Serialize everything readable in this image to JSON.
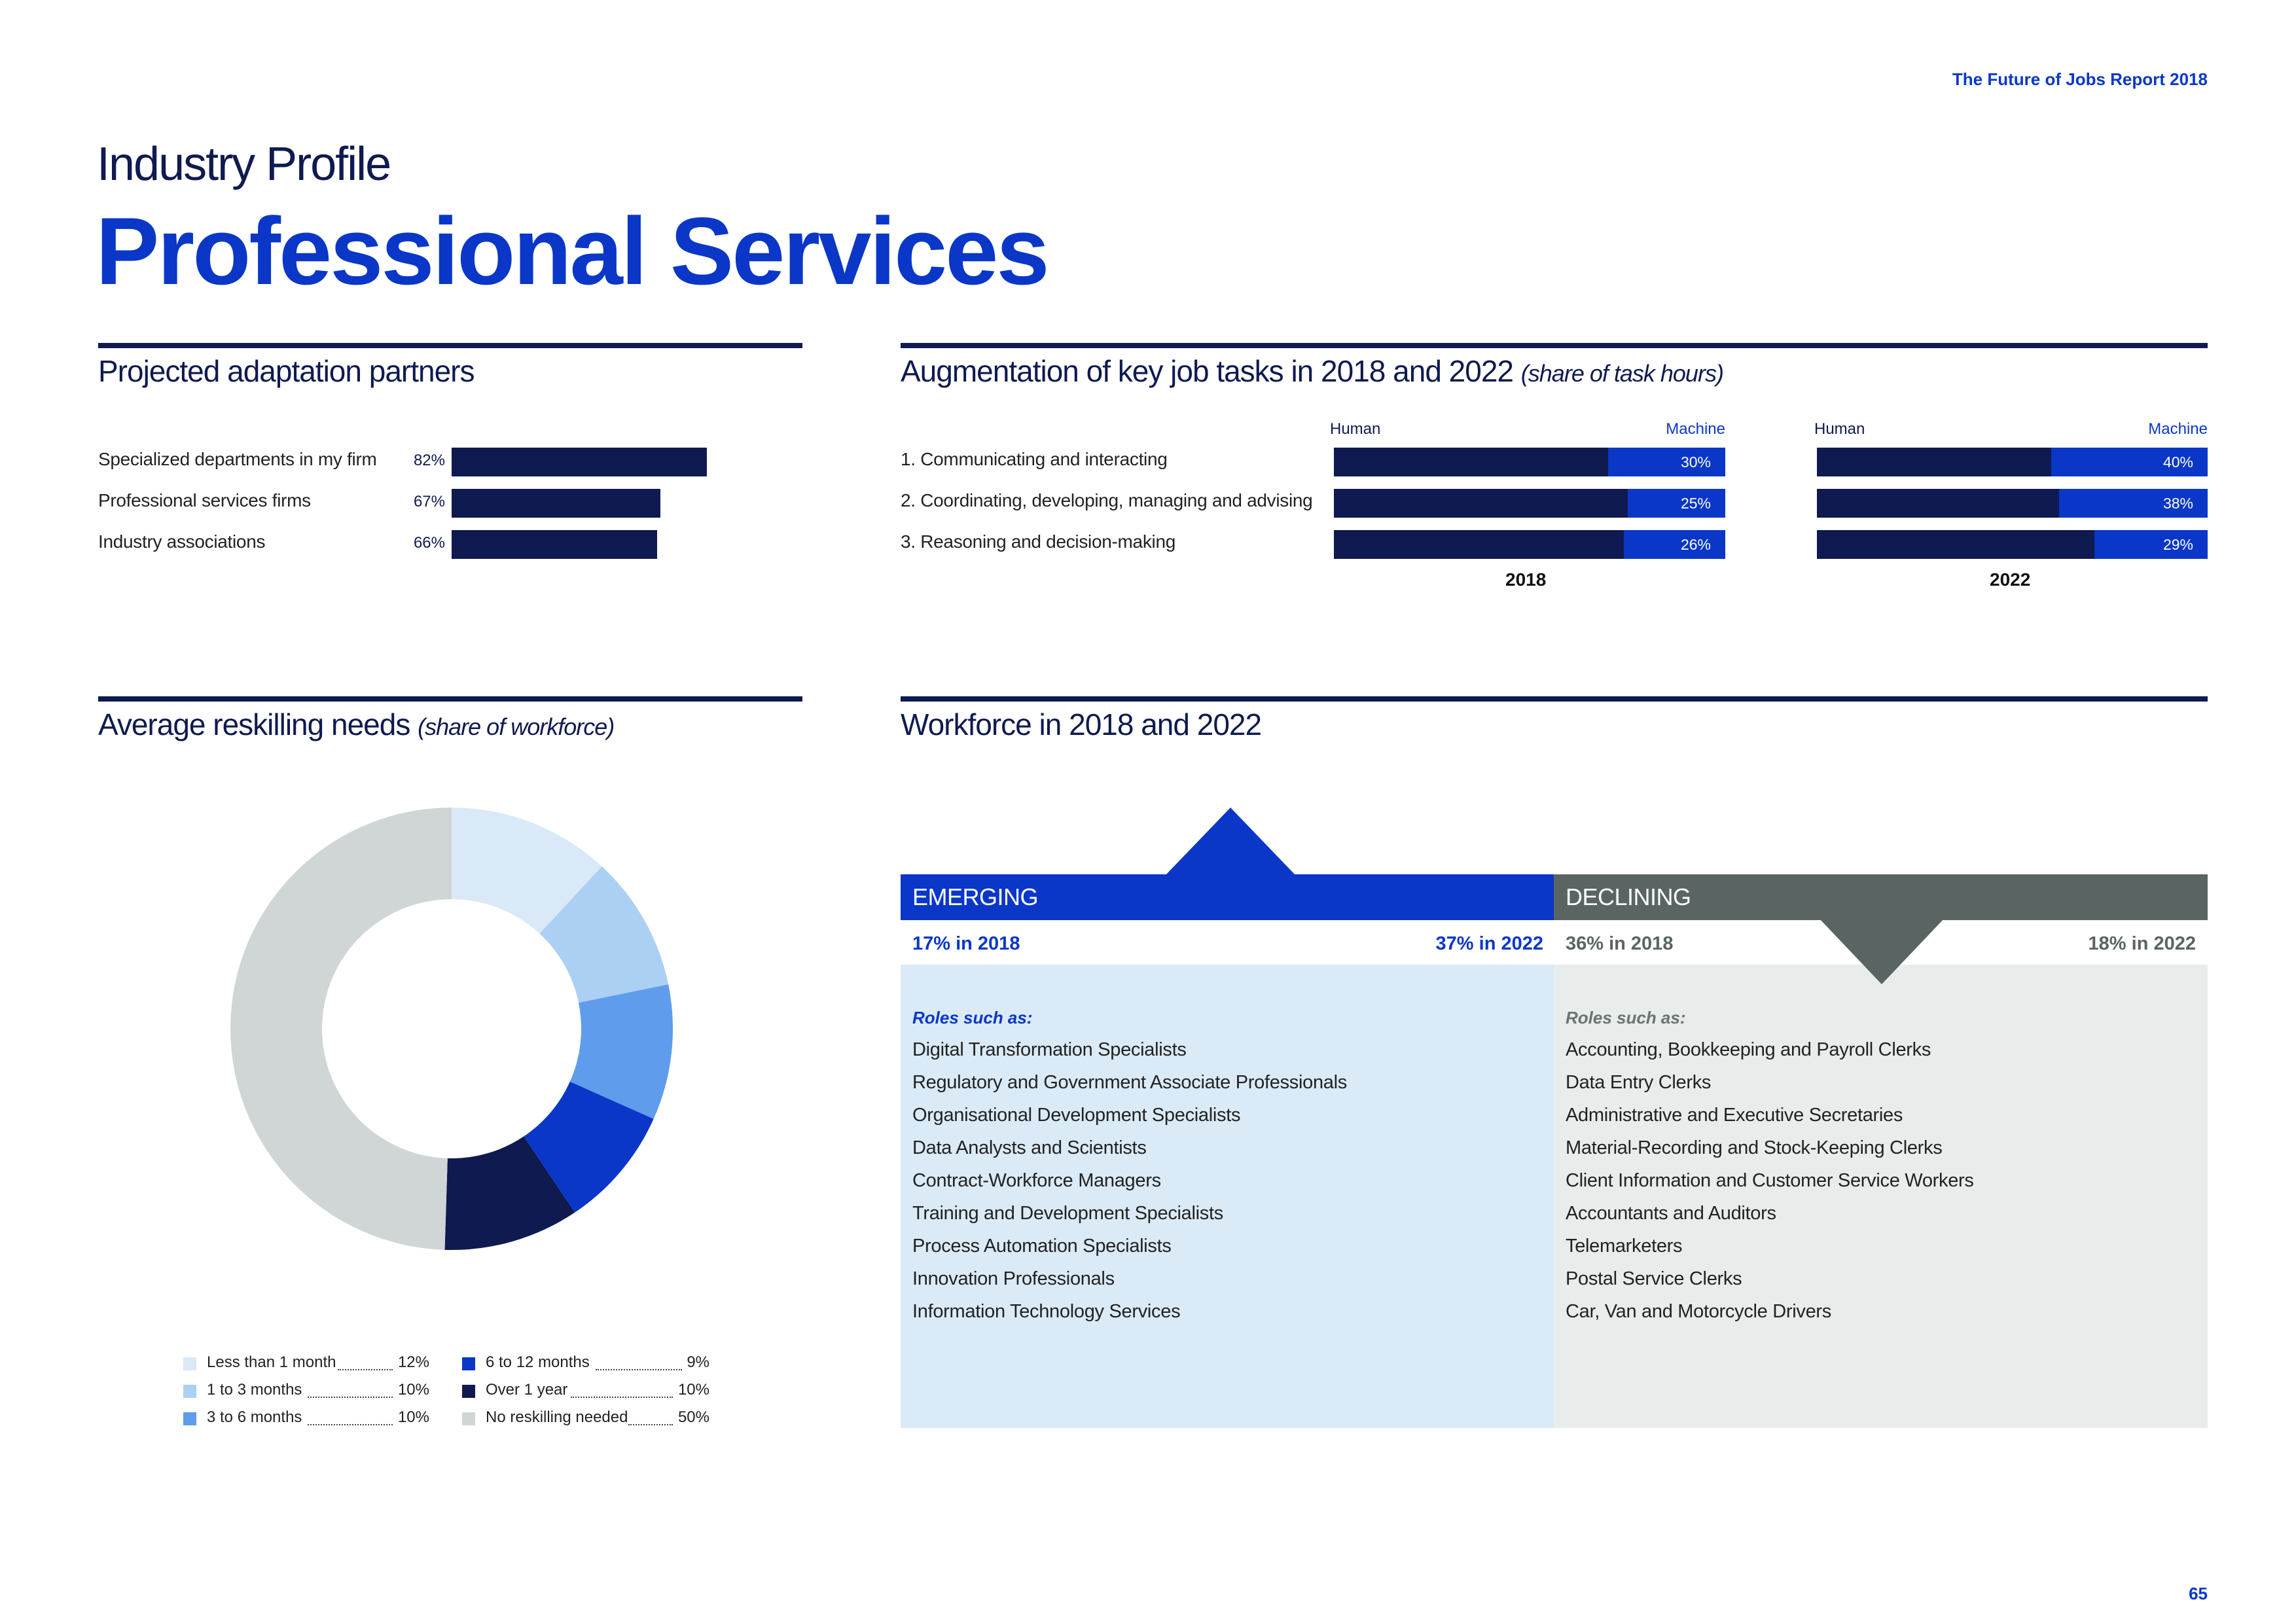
{
  "header": {
    "report_title": "The Future of Jobs Report 2018",
    "page_number": "65"
  },
  "title": {
    "kicker": "Industry Profile",
    "main": "Professional Services"
  },
  "partners": {
    "title": "Projected adaptation partners",
    "items": [
      {
        "label": "Specialized departments in my firm",
        "pct": "82%",
        "value": 82
      },
      {
        "label": "Professional services firms",
        "pct": "67%",
        "value": 67
      },
      {
        "label": "Industry associations",
        "pct": "66%",
        "value": 66
      }
    ]
  },
  "augmentation": {
    "title": "Augmentation of key job tasks in 2018 and 2022",
    "subtitle": "(share of task hours)",
    "human_label": "Human",
    "machine_label": "Machine",
    "year1": "2018",
    "year2": "2022",
    "tasks": [
      {
        "label": "1.  Communicating and interacting",
        "m2018": 30,
        "m2018_label": "30%",
        "m2022": 40,
        "m2022_label": "40%"
      },
      {
        "label": "2.  Coordinating, developing, managing and advising",
        "m2018": 25,
        "m2018_label": "25%",
        "m2022": 38,
        "m2022_label": "38%"
      },
      {
        "label": "3.  Reasoning and decision-making",
        "m2018": 26,
        "m2018_label": "26%",
        "m2022": 29,
        "m2022_label": "29%"
      }
    ]
  },
  "reskilling": {
    "title": "Average reskilling needs",
    "subtitle": "(share of workforce)",
    "legend": [
      {
        "label": "Less than 1 month",
        "value": "12%",
        "color": "#d9e9f8"
      },
      {
        "label": "1 to 3 months",
        "value": "10%",
        "color": "#abd0f3"
      },
      {
        "label": "3 to 6 months",
        "value": "10%",
        "color": "#5f9cec"
      },
      {
        "label": "6 to 12 months",
        "value": "9%",
        "color": "#0a37c8"
      },
      {
        "label": "Over 1 year",
        "value": "10%",
        "color": "#0f1a50"
      },
      {
        "label": "No reskilling needed",
        "value": "50%",
        "color": "#d0d6d6"
      }
    ]
  },
  "chart_data": {
    "type": "pie",
    "categories": [
      "Less than 1 month",
      "1 to 3 months",
      "3 to 6 months",
      "6 to 12 months",
      "Over 1 year",
      "No reskilling needed"
    ],
    "values": [
      12,
      10,
      10,
      9,
      10,
      50
    ],
    "colors": [
      "#d9e9f8",
      "#abd0f3",
      "#5f9cec",
      "#0a37c8",
      "#0f1a50",
      "#d0d6d6"
    ],
    "title": "Average reskilling needs",
    "legend": "bottom"
  },
  "workforce": {
    "title": "Workforce in 2018 and 2022",
    "emerging": {
      "heading": "EMERGING",
      "from": "17% in 2018",
      "to": "37% in 2022",
      "roles_label": "Roles such as:",
      "roles": [
        "Digital Transformation Specialists",
        "Regulatory and Government Associate Professionals",
        "Organisational Development Specialists",
        "Data Analysts and Scientists",
        "Contract-Workforce Managers",
        "Training and Development Specialists",
        "Process Automation Specialists",
        "Innovation Professionals",
        "Information Technology Services"
      ]
    },
    "declining": {
      "heading": "DECLINING",
      "from": "36% in 2018",
      "to": "18% in 2022",
      "roles_label": "Roles such as:",
      "roles": [
        "Accounting,  Bookkeeping and Payroll Clerks",
        "Data Entry Clerks",
        "Administrative and Executive Secretaries",
        "Material-Recording and Stock-Keeping Clerks",
        "Client Information and Customer Service Workers",
        "Accountants and Auditors",
        "Telemarketers",
        "Postal Service Clerks",
        "Car, Van and Motorcycle Drivers"
      ]
    }
  },
  "colors": {
    "navy": "#0f1a50",
    "blue": "#0a37c8",
    "emerging_bg": "#daeaf7",
    "declining_bg": "#e8eceb",
    "declining_head": "#5a6563"
  }
}
